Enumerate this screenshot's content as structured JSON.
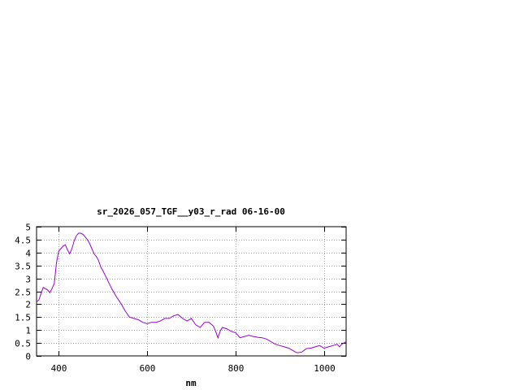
{
  "chart_data": {
    "type": "line",
    "title": "sr_2026_057_TGF__y03_r_rad 06-16-00",
    "xlabel": "nm",
    "ylabel": "",
    "xlim": [
      350,
      1050
    ],
    "ylim": [
      0,
      5
    ],
    "xticks": [
      400,
      600,
      800,
      1000
    ],
    "yticks": [
      0,
      0.5,
      1,
      1.5,
      2,
      2.5,
      3,
      3.5,
      4,
      4.5,
      5
    ],
    "grid": true,
    "line_color": "#9400d3",
    "series": [
      {
        "x": [
          350,
          355,
          360,
          365,
          370,
          375,
          380,
          385,
          390,
          395,
          400,
          405,
          410,
          415,
          420,
          425,
          430,
          435,
          440,
          445,
          450,
          455,
          460,
          465,
          470,
          475,
          480,
          485,
          490,
          495,
          500,
          510,
          520,
          530,
          540,
          550,
          560,
          570,
          580,
          590,
          600,
          610,
          620,
          630,
          640,
          650,
          660,
          670,
          680,
          690,
          700,
          710,
          720,
          730,
          740,
          750,
          755,
          760,
          765,
          770,
          780,
          790,
          800,
          810,
          820,
          830,
          840,
          850,
          860,
          870,
          880,
          890,
          900,
          910,
          920,
          930,
          935,
          940,
          950,
          960,
          970,
          980,
          990,
          1000,
          1010,
          1020,
          1030,
          1035,
          1040,
          1045,
          1050
        ],
        "y": [
          2.1,
          2.15,
          2.4,
          2.65,
          2.6,
          2.55,
          2.45,
          2.6,
          2.8,
          3.6,
          4.05,
          4.15,
          4.25,
          4.3,
          4.1,
          3.95,
          4.15,
          4.45,
          4.65,
          4.75,
          4.75,
          4.7,
          4.6,
          4.5,
          4.35,
          4.15,
          3.95,
          3.85,
          3.7,
          3.45,
          3.3,
          2.95,
          2.6,
          2.3,
          2.05,
          1.75,
          1.5,
          1.45,
          1.4,
          1.3,
          1.25,
          1.3,
          1.3,
          1.35,
          1.45,
          1.45,
          1.55,
          1.6,
          1.45,
          1.35,
          1.45,
          1.2,
          1.1,
          1.3,
          1.3,
          1.15,
          0.95,
          0.7,
          0.95,
          1.1,
          1.05,
          0.95,
          0.9,
          0.7,
          0.75,
          0.8,
          0.75,
          0.72,
          0.7,
          0.65,
          0.55,
          0.45,
          0.4,
          0.35,
          0.3,
          0.2,
          0.15,
          0.12,
          0.15,
          0.28,
          0.3,
          0.35,
          0.4,
          0.3,
          0.35,
          0.4,
          0.45,
          0.35,
          0.45,
          0.5,
          0.55
        ]
      }
    ]
  }
}
